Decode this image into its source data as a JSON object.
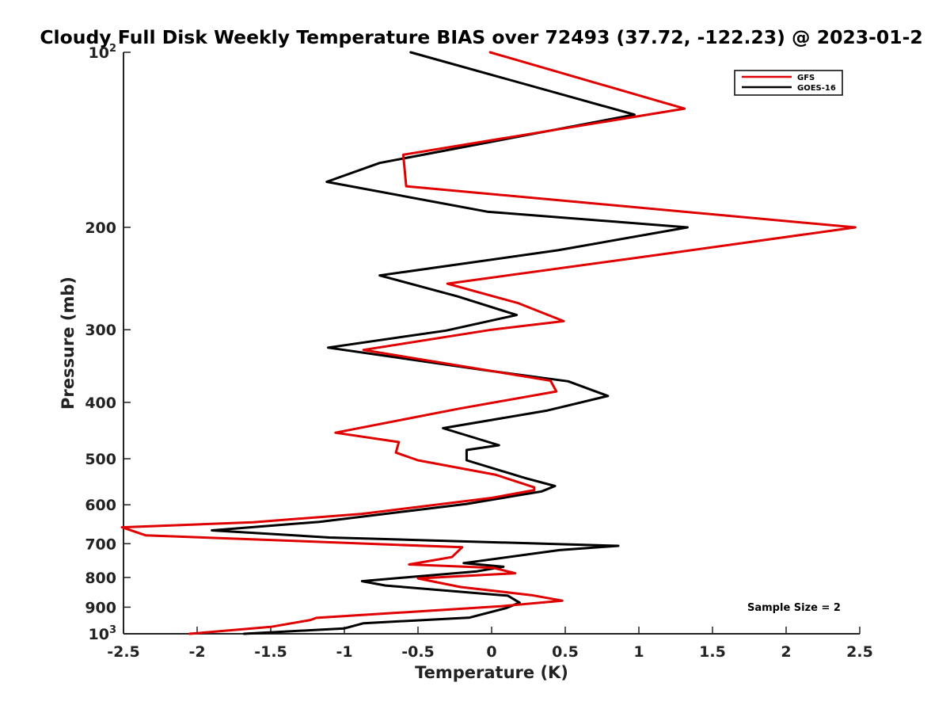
{
  "chart_data": {
    "type": "line",
    "title": "Cloudy Full Disk Weekly Temperature BIAS over 72493 (37.72, -122.23) @ 2023-01-2",
    "xlabel": "Temperature (K)",
    "ylabel": "Pressure (mb)",
    "xlim": [
      -2.5,
      2.5
    ],
    "ylim": [
      100,
      1000
    ],
    "yscale": "log",
    "yreversed": true,
    "grid": false,
    "legend_position": "top-right",
    "x_ticks": [
      -2.5,
      -2,
      -1.5,
      -1,
      -0.5,
      0,
      0.5,
      1,
      1.5,
      2,
      2.5
    ],
    "x_tick_labels": [
      "-2.5",
      "-2",
      "-1.5",
      "-1",
      "-0.5",
      "0",
      "0.5",
      "1",
      "1.5",
      "2",
      "2.5"
    ],
    "y_ticks": [
      100,
      200,
      300,
      400,
      500,
      600,
      700,
      800,
      900,
      1000
    ],
    "y_tick_labels": [
      {
        "base": "10",
        "exp": "2"
      },
      {
        "base": "200",
        "exp": ""
      },
      {
        "base": "300",
        "exp": ""
      },
      {
        "base": "400",
        "exp": ""
      },
      {
        "base": "500",
        "exp": ""
      },
      {
        "base": "600",
        "exp": ""
      },
      {
        "base": "700",
        "exp": ""
      },
      {
        "base": "800",
        "exp": ""
      },
      {
        "base": "900",
        "exp": ""
      },
      {
        "base": "10",
        "exp": "3"
      }
    ],
    "annotation": "Sample Size = 2",
    "series": [
      {
        "name": "GFS",
        "color": "#e00000",
        "points": [
          [
            -0.01,
            100
          ],
          [
            1.31,
            125
          ],
          [
            -0.6,
            150
          ],
          [
            -0.58,
            170
          ],
          [
            2.47,
            200
          ],
          [
            1.02,
            225
          ],
          [
            -0.3,
            250
          ],
          [
            0.18,
            270
          ],
          [
            0.49,
            290
          ],
          [
            0.0,
            300
          ],
          [
            -0.87,
            325
          ],
          [
            0.4,
            367
          ],
          [
            0.44,
            383
          ],
          [
            -0.22,
            410
          ],
          [
            -1.06,
            451
          ],
          [
            -0.63,
            468
          ],
          [
            -0.65,
            488
          ],
          [
            -0.5,
            503
          ],
          [
            0.03,
            533
          ],
          [
            0.29,
            560
          ],
          [
            0.29,
            566
          ],
          [
            0.0,
            584
          ],
          [
            -0.88,
            622
          ],
          [
            -1.62,
            643
          ],
          [
            -2.51,
            656
          ],
          [
            -2.35,
            677
          ],
          [
            -0.2,
            710
          ],
          [
            -0.27,
            738
          ],
          [
            -0.56,
            760
          ],
          [
            0.01,
            770
          ],
          [
            0.16,
            787
          ],
          [
            -0.5,
            803
          ],
          [
            -0.21,
            831
          ],
          [
            0.27,
            858
          ],
          [
            0.48,
            877
          ],
          [
            0.06,
            897
          ],
          [
            -1.19,
            939
          ],
          [
            -1.23,
            947
          ],
          [
            -1.5,
            973
          ],
          [
            -2.05,
            1000
          ]
        ]
      },
      {
        "name": "GOES-16",
        "color": "#000000",
        "points": [
          [
            -0.55,
            100
          ],
          [
            0.97,
            128
          ],
          [
            -0.76,
            155
          ],
          [
            -1.12,
            167
          ],
          [
            -0.03,
            188
          ],
          [
            1.33,
            200
          ],
          [
            0.45,
            219
          ],
          [
            -0.76,
            242
          ],
          [
            -0.23,
            263
          ],
          [
            0.17,
            283
          ],
          [
            -0.31,
            301
          ],
          [
            -1.11,
            322
          ],
          [
            -0.05,
            352
          ],
          [
            0.52,
            368
          ],
          [
            0.79,
            390
          ],
          [
            0.38,
            413
          ],
          [
            -0.33,
            443
          ],
          [
            0.05,
            474
          ],
          [
            -0.17,
            483
          ],
          [
            -0.17,
            503
          ],
          [
            0.23,
            540
          ],
          [
            0.43,
            557
          ],
          [
            0.34,
            569
          ],
          [
            -0.17,
            598
          ],
          [
            -0.59,
            616
          ],
          [
            -1.17,
            642
          ],
          [
            -1.9,
            664
          ],
          [
            -1.1,
            683
          ],
          [
            0.86,
            706
          ],
          [
            0.46,
            718
          ],
          [
            -0.19,
            756
          ],
          [
            0.08,
            767
          ],
          [
            -0.1,
            781
          ],
          [
            -0.88,
            812
          ],
          [
            -0.72,
            826
          ],
          [
            0.11,
            860
          ],
          [
            0.19,
            884
          ],
          [
            0.1,
            903
          ],
          [
            -0.15,
            938
          ],
          [
            -0.87,
            959
          ],
          [
            -1.0,
            979
          ],
          [
            -1.68,
            1000
          ]
        ]
      }
    ]
  }
}
